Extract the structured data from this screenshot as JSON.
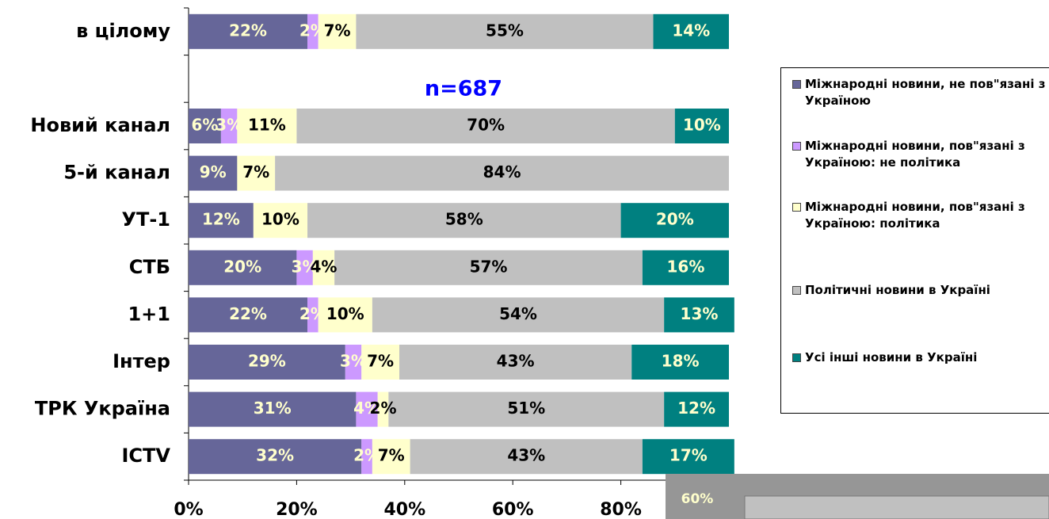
{
  "chart_data": {
    "type": "stacked_bar_horizontal",
    "annotations": [
      "n=687",
      "60%"
    ],
    "categories": [
      "в цілому",
      null,
      "Новий канал",
      "5-й канал",
      "УТ-1",
      "СТБ",
      "1+1",
      "Інтер",
      "ТРК Україна",
      "ICTV"
    ],
    "series": [
      {
        "name": "Міжнародні новини, не пов\"язані з Україною",
        "color": "#666699",
        "values": [
          22,
          null,
          6,
          9,
          12,
          20,
          22,
          29,
          31,
          32
        ],
        "value_labels": [
          "22%",
          null,
          "6%",
          "9%",
          "12%",
          "20%",
          "22%",
          "29%",
          "31%",
          "32%"
        ]
      },
      {
        "name": "Міжнародні новини, пов\"язані з Україною: не політика",
        "color": "#cc99ff",
        "values": [
          2,
          null,
          3,
          null,
          null,
          3,
          2,
          3,
          4,
          2
        ],
        "value_labels": [
          "2%",
          null,
          "3%",
          null,
          null,
          "3%",
          "2%",
          "3%",
          "4%",
          "2%"
        ]
      },
      {
        "name": "Міжнародні новини, пов\"язані з Україною: політика",
        "color": "#ffffcc",
        "values": [
          7,
          null,
          11,
          7,
          10,
          4,
          10,
          7,
          2,
          7
        ],
        "value_labels": [
          "7%",
          null,
          "11%",
          "7%",
          "10%",
          "4%",
          "10%",
          "7%",
          "2%",
          "7%"
        ]
      },
      {
        "name": "Політичні новини в Україні",
        "color": "#c0c0c0",
        "values": [
          55,
          null,
          70,
          84,
          58,
          57,
          54,
          43,
          51,
          43
        ],
        "value_labels": [
          "55%",
          null,
          "70%",
          "84%",
          "58%",
          "57%",
          "54%",
          "43%",
          "51%",
          "43%"
        ]
      },
      {
        "name": "Усі інші новини в Україні",
        "color": "#008080",
        "values": [
          14,
          null,
          10,
          null,
          20,
          16,
          13,
          18,
          12,
          17
        ],
        "value_labels": [
          "14%",
          null,
          "10%",
          null,
          "20%",
          "16%",
          "13%",
          "18%",
          "12%",
          "17%"
        ]
      }
    ],
    "xlim": [
      0,
      100
    ],
    "xticks": [
      {
        "value": 0,
        "label": "0%"
      },
      {
        "value": 20,
        "label": "20%"
      },
      {
        "value": 40,
        "label": "40%"
      },
      {
        "value": 60,
        "label": "60%"
      },
      {
        "value": 80,
        "label": "80%"
      }
    ]
  }
}
